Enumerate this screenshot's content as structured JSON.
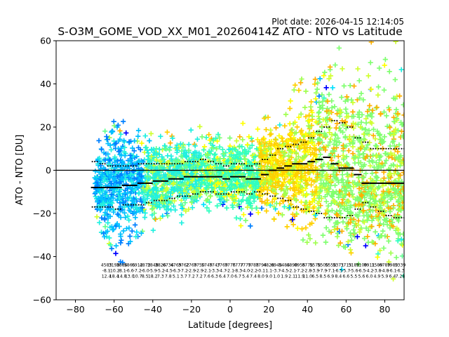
{
  "plot_date": "Plot date: 2026-04-15 12:14:05",
  "chart_data": {
    "type": "scatter",
    "title": "S-O3M_GOME_VOD_XX_M01_20260414Z ATO - NTO vs Latitude",
    "xlabel": "Latitude [degrees]",
    "ylabel": "ATO - NTO [DU]",
    "xlim": [
      -90,
      90
    ],
    "ylim": [
      -60,
      60
    ],
    "xticks": [
      -80,
      -60,
      -40,
      -20,
      0,
      20,
      40,
      60,
      80
    ],
    "yticks": [
      -60,
      -40,
      -20,
      0,
      20,
      40,
      60
    ],
    "grid": false,
    "zero_line": 0,
    "point_marker": "+",
    "colors": [
      "#0000ff",
      "#0080ff",
      "#00c0ff",
      "#00e0ff",
      "#20f0e0",
      "#30ffc0",
      "#60ff90",
      "#80ff70",
      "#a0ff50",
      "#d0ff30",
      "#ffff00",
      "#ffd000",
      "#ffb000"
    ],
    "scatter_envelope": {
      "x": [
        -70,
        -66,
        -62,
        -58,
        -54,
        -50,
        -46,
        -42,
        -38,
        -34,
        -30,
        -26,
        -22,
        -18,
        -14,
        -10,
        -6,
        -2,
        2,
        6,
        10,
        14,
        18,
        22,
        26,
        30,
        34,
        38,
        42,
        46,
        50,
        54,
        58,
        62,
        66,
        70,
        74,
        78,
        82,
        86,
        90
      ],
      "center": [
        -7,
        -8,
        -8,
        -8,
        -7,
        -6,
        -6,
        -5,
        -5,
        -4,
        -4,
        -3,
        -3,
        -2,
        -2,
        -2,
        -3,
        -4,
        -3,
        -3,
        -4,
        -3,
        -2,
        0,
        1,
        2,
        3,
        3,
        2,
        0,
        -2,
        -3,
        -4,
        -5,
        -6,
        -6,
        -6,
        -6,
        -6,
        -6,
        -6
      ],
      "spread_up": [
        14,
        26,
        30,
        34,
        26,
        24,
        26,
        24,
        22,
        21,
        20,
        20,
        22,
        20,
        20,
        21,
        19,
        17,
        20,
        23,
        26,
        22,
        26,
        26,
        24,
        28,
        32,
        40,
        42,
        48,
        52,
        54,
        56,
        58,
        58,
        58,
        58,
        58,
        56,
        50,
        44
      ],
      "spread_down": [
        14,
        22,
        30,
        32,
        30,
        30,
        26,
        24,
        22,
        22,
        20,
        18,
        18,
        16,
        15,
        14,
        14,
        14,
        18,
        20,
        20,
        16,
        18,
        22,
        22,
        26,
        30,
        36,
        34,
        30,
        34,
        36,
        36,
        36,
        36,
        36,
        36,
        36,
        36,
        36,
        36
      ]
    },
    "mean_line": {
      "x": [
        -70,
        -66,
        -62,
        -58,
        -54,
        -50,
        -46,
        -42,
        -38,
        -34,
        -30,
        -26,
        -22,
        -18,
        -14,
        -10,
        -6,
        -2,
        2,
        6,
        10,
        14,
        18,
        22,
        26,
        30,
        34,
        38,
        42,
        46,
        50,
        54,
        58,
        62,
        66,
        70,
        74,
        78,
        82,
        86,
        90
      ],
      "y": [
        -8,
        -8,
        -8,
        -8,
        -7,
        -7,
        -6,
        -6,
        -5,
        -5,
        -4,
        -4,
        -3,
        -3,
        -3,
        -3,
        -3,
        -4,
        -3,
        -3,
        -4,
        -4,
        -2,
        0,
        1,
        2,
        3,
        3,
        4,
        5,
        6,
        3,
        1,
        1,
        -2,
        -6,
        -6,
        -6,
        -6,
        -6,
        -6
      ]
    },
    "std_upper": {
      "x": [
        -70,
        -66,
        -62,
        -58,
        -54,
        -50,
        -46,
        -42,
        -38,
        -34,
        -30,
        -26,
        -22,
        -18,
        -14,
        -10,
        -6,
        -2,
        2,
        6,
        10,
        14,
        18,
        22,
        26,
        30,
        34,
        38,
        42,
        46,
        50,
        54,
        58,
        62,
        66,
        70,
        74,
        78,
        82,
        86,
        90
      ],
      "y": [
        4,
        3,
        2,
        2,
        2,
        2,
        3,
        3,
        3,
        3,
        3,
        3,
        4,
        4,
        5,
        4,
        3,
        2,
        3,
        3,
        2,
        3,
        5,
        7,
        10,
        11,
        12,
        13,
        15,
        18,
        20,
        23,
        22,
        20,
        15,
        13,
        10,
        10,
        10,
        10,
        10
      ]
    },
    "std_lower": {
      "x": [
        -70,
        -66,
        -62,
        -58,
        -54,
        -50,
        -46,
        -42,
        -38,
        -34,
        -30,
        -26,
        -22,
        -18,
        -14,
        -10,
        -6,
        -2,
        2,
        6,
        10,
        14,
        18,
        22,
        26,
        30,
        34,
        38,
        42,
        46,
        50,
        54,
        58,
        62,
        66,
        70,
        74,
        78,
        82,
        86,
        90
      ],
      "y": [
        -17,
        -17,
        -17,
        -18,
        -16,
        -16,
        -16,
        -15,
        -14,
        -14,
        -13,
        -12,
        -12,
        -11,
        -10,
        -10,
        -11,
        -11,
        -10,
        -10,
        -11,
        -10,
        -11,
        -12,
        -13,
        -14,
        -17,
        -18,
        -19,
        -20,
        -22,
        -22,
        -22,
        -21,
        -18,
        -15,
        -17,
        -19,
        -21,
        -22,
        -22
      ]
    },
    "annotations": [
      {
        "x": -64,
        "lines": [
          "4583",
          "-8.1",
          "12.4"
        ]
      },
      {
        "x": -60,
        "lines": [
          "3198",
          "-10.2",
          "18.4"
        ]
      },
      {
        "x": -56,
        "lines": [
          "3886",
          "-8.1",
          "14.8"
        ]
      },
      {
        "x": -52,
        "lines": [
          "5865",
          "-6.6",
          "13.0"
        ]
      },
      {
        "x": -48,
        "lines": [
          "6912",
          "-7.2",
          "10.7"
        ]
      },
      {
        "x": -44,
        "lines": [
          "4872",
          "-6.0",
          "8.5"
        ]
      },
      {
        "x": -40,
        "lines": [
          "3848",
          "-5.9",
          "18.2"
        ]
      },
      {
        "x": -36,
        "lines": [
          "3826",
          "-5.2",
          "7.3"
        ]
      },
      {
        "x": -32,
        "lines": [
          "6736",
          "-4.5",
          "7.8"
        ]
      },
      {
        "x": -28,
        "lines": [
          "4769",
          "-6.3",
          "5.1"
        ]
      },
      {
        "x": -24,
        "lines": [
          "3762",
          "-7.2",
          "3.7"
        ]
      },
      {
        "x": -20,
        "lines": [
          "2769",
          "-2.9",
          "7.2"
        ]
      },
      {
        "x": -16,
        "lines": [
          "7750",
          "-2.9",
          "7.2"
        ]
      },
      {
        "x": -12,
        "lines": [
          "5749",
          "-2.1",
          "7.6"
        ]
      },
      {
        "x": -8,
        "lines": [
          "7747",
          "-3.3",
          "6.3"
        ]
      },
      {
        "x": -4,
        "lines": [
          "3769",
          "-4.7",
          "6.4"
        ]
      },
      {
        "x": 0,
        "lines": [
          "7776",
          "-2.1",
          "7.0"
        ]
      },
      {
        "x": 4,
        "lines": [
          "7777",
          "-8.3",
          "6.7"
        ]
      },
      {
        "x": 8,
        "lines": [
          "7779",
          "-4.0",
          "5.4"
        ]
      },
      {
        "x": 12,
        "lines": [
          "7788",
          "-2.2",
          "7.4"
        ]
      },
      {
        "x": 16,
        "lines": [
          "7794",
          "-0.1",
          "8.0"
        ]
      },
      {
        "x": 20,
        "lines": [
          "4828",
          "1.1",
          "9.0"
        ]
      },
      {
        "x": 24,
        "lines": [
          "6948",
          "-3.7",
          "1.0"
        ]
      },
      {
        "x": 28,
        "lines": [
          "5485",
          "-4.5",
          "1.9"
        ]
      },
      {
        "x": 32,
        "lines": [
          "4890",
          "-2.1",
          "2.1"
        ]
      },
      {
        "x": 36,
        "lines": [
          "8955",
          "-7.2",
          "11.9"
        ]
      },
      {
        "x": 40,
        "lines": [
          "8778",
          "-2.8",
          "11.0"
        ]
      },
      {
        "x": 44,
        "lines": [
          "5578",
          "-3.9",
          "6.5"
        ]
      },
      {
        "x": 48,
        "lines": [
          "5500",
          "-7.9",
          "8.5"
        ]
      },
      {
        "x": 52,
        "lines": [
          "5558",
          "-7.1",
          "6.9"
        ]
      },
      {
        "x": 56,
        "lines": [
          "5371",
          "-6.5",
          "8.4"
        ]
      },
      {
        "x": 60,
        "lines": [
          "3713",
          "-5.7",
          "6.6"
        ]
      },
      {
        "x": 64,
        "lines": [
          "5189",
          "-5.6",
          "5.5"
        ]
      },
      {
        "x": 68,
        "lines": [
          "7109",
          "-6.5",
          "5.6"
        ]
      },
      {
        "x": 72,
        "lines": [
          "8911",
          "-4.2",
          "6.0"
        ]
      },
      {
        "x": 76,
        "lines": [
          "1589",
          "-3.8",
          "4.9"
        ]
      },
      {
        "x": 80,
        "lines": [
          "6789",
          "-4.8",
          "5.9"
        ]
      },
      {
        "x": 84,
        "lines": [
          "7989",
          "-6.1",
          "6.4"
        ]
      },
      {
        "x": 88,
        "lines": [
          "1339",
          "-6.3",
          "7.28"
        ]
      }
    ]
  }
}
